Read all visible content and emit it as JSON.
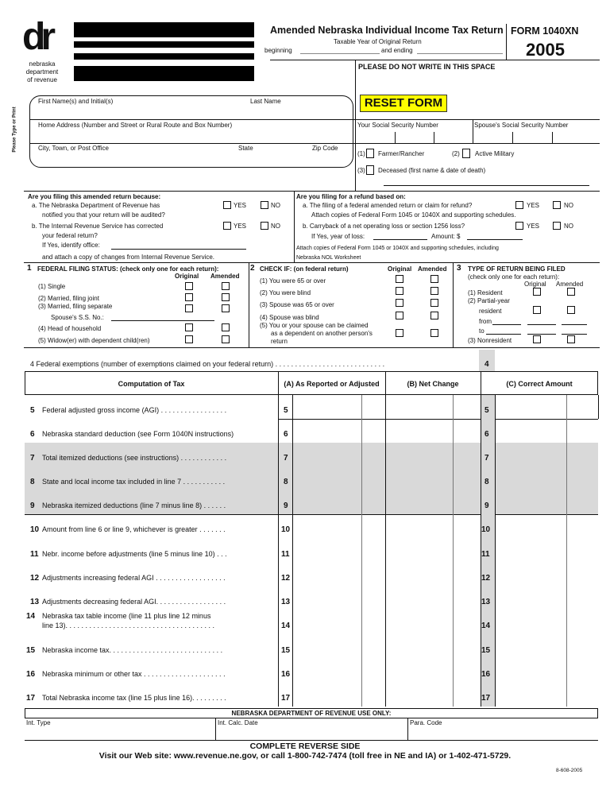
{
  "header": {
    "logo_text": "dr",
    "agency": [
      "nebraska",
      "department",
      "of revenue"
    ],
    "title": "Amended Nebraska Individual Income Tax Return",
    "taxable_year": "Taxable Year of Original Return",
    "beginning": "beginning",
    "and_ending": "and ending",
    "form_id": "FORM 1040XN",
    "year": "2005",
    "do_not_write": "PLEASE DO NOT WRITE IN THIS SPACE",
    "reset": "RESET FORM",
    "reset_color": "#ffff00"
  },
  "taxpayer": {
    "side_label": "Please Type or Print",
    "first_name": "First Name(s) and Initial(s)",
    "last_name": "Last Name",
    "address": "Home Address (Number and Street or Rural Route and Box Number)",
    "city": "City, Town, or Post Office",
    "state": "State",
    "zip": "Zip Code",
    "ssn": "Your Social Security Number",
    "spouse_ssn": "Spouse's Social Security Number",
    "farmer": "Farmer/Rancher",
    "farmer_n": "(1)",
    "military": "Active Military",
    "military_n": "(2)",
    "deceased": "Deceased (first name & date of death)",
    "deceased_n": "(3)"
  },
  "reasons": {
    "left_title": "Are you filing this amended return because:",
    "a1": "a. The Nebraska Department of Revenue has",
    "a2": "notified you that your return will be audited?",
    "b1": "b. The Internal Revenue Service has corrected",
    "b2": "your federal return?",
    "office": "If Yes, identify office:",
    "attach": "and attach a copy of changes from Internal Revenue Service.",
    "yes": "YES",
    "no": "NO",
    "right_title": "Are you filing for a refund based on:",
    "ra1": "a. The filing of a federal amended return or claim for refund?",
    "ra2": "Attach copies of Federal Form 1045 or 1040X and supporting schedules.",
    "rb1": "b. Carryback of a net operating loss or section 1256 loss?",
    "rb2": "If Yes, year of loss:",
    "amount": "Amount: $",
    "rattach1": "Attach copies of Federal Form 1045 or 1040X and supporting schedules, including",
    "rattach2": "Nebraska NOL Worksheet"
  },
  "status": {
    "n": "1",
    "title": "FEDERAL FILING STATUS: (check only one for each return):",
    "original": "Original",
    "amended": "Amended",
    "items": [
      "(1)  Single",
      "(2)  Married, filing joint",
      "(3)  Married, filing separate",
      "Spouse's S.S. No.:",
      "(4)  Head of household",
      "(5)  Widow(er) with dependent child(ren)"
    ]
  },
  "check_if": {
    "n": "2",
    "title": "CHECK IF: (on federal return)",
    "original": "Original",
    "amended": "Amended",
    "items": [
      "(1) You were 65 or over",
      "(2) You were blind",
      "(3) Spouse was 65 or over",
      "(4) Spouse was blind",
      "(5) You or your spouse can be claimed",
      "as a dependent on another person's",
      "return"
    ]
  },
  "return_type": {
    "n": "3",
    "title": "TYPE OF RETURN BEING FILED",
    "sub": "(check only one for each return):",
    "original": "Original",
    "amended": "Amended",
    "resident": "(1) Resident",
    "partial": "(2) Partial-year",
    "partial2": "resident",
    "from": "from",
    "to": "to",
    "nonresident": "(3) Nonresident"
  },
  "line4": {
    "label": "4  Federal exemptions (number of exemptions claimed on your federal return) . . . . . . . . . . . . . . . . . . . . . . . . . . . .",
    "n": "4"
  },
  "table": {
    "head": "Computation of Tax",
    "col_a": "(A) As Reported or Adjusted",
    "col_b": "(B) Net Change",
    "col_c": "(C) Correct Amount",
    "shade_color": "#d9d9d9",
    "rows": [
      {
        "n": "5",
        "label": "Federal adjusted gross income (AGI) . . . . . . . . . . . . . . . . .",
        "shaded": false
      },
      {
        "n": "6",
        "label": "Nebraska standard deduction (see Form 1040N instructions)",
        "shaded": false
      },
      {
        "n": "7",
        "label": "Total itemized deductions (see instructions) . . . . . . . . . . . .",
        "shaded": true
      },
      {
        "n": "8",
        "label": "State and local income tax included in line 7 . . . . . . . . . . .",
        "shaded": true
      },
      {
        "n": "9",
        "label": "Nebraska itemized deductions (line 7 minus line 8) . . . . . .",
        "shaded": true
      },
      {
        "n": "10",
        "label": "Amount from line 6 or line 9, whichever is greater . . . . . . .",
        "shaded": false
      },
      {
        "n": "11",
        "label": "Nebr. income before adjustments (line 5 minus line 10) . . .",
        "shaded": false
      },
      {
        "n": "12",
        "label": "Adjustments increasing federal AGI . . . . . . . . . . . . . . . . . .",
        "shaded": false
      },
      {
        "n": "13",
        "label": "Adjustments decreasing federal AGI. . . . . . . . . . . . . . . . . .",
        "shaded": false
      },
      {
        "n": "14",
        "label": "Nebraska  tax table income (line 11 plus line 12 minus",
        "label2": "line 13). . . . . . . . . . . . . . . . . . . . . . . . . . . . . . . . . . . . . .",
        "shaded": false
      },
      {
        "n": "15",
        "label": "Nebraska income tax. . . . . . . . . . . . . . . . . . . . . . . . . . . . .",
        "shaded": false
      },
      {
        "n": "16",
        "label": "Nebraska minimum or other tax  . . . . . . . . . . . . . . . . . . . . .",
        "shaded": false
      },
      {
        "n": "17",
        "label": "Total Nebraska income tax (line 15 plus line 16). . . . . . . . .",
        "shaded": false
      }
    ]
  },
  "footer": {
    "use_only": "NEBRASKA DEPARTMENT OF REVENUE USE ONLY:",
    "int_type": "Int. Type",
    "int_calc": "Int. Calc. Date",
    "para": "Para. Code",
    "reverse": "COMPLETE REVERSE SIDE",
    "visit": "Visit our Web site: www.revenue.ne.gov, or call 1-800-742-7474 (toll free in NE and IA) or 1-402-471-5729.",
    "code": "8-608-2005"
  }
}
